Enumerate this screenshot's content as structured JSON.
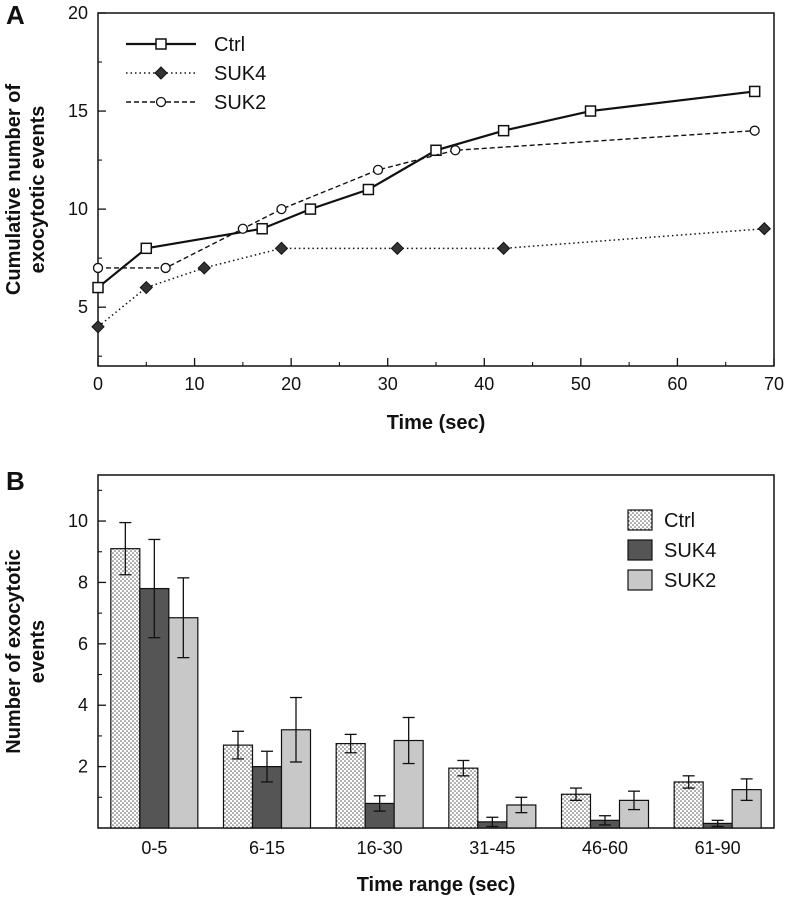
{
  "panels": {
    "a": "A",
    "b": "B"
  },
  "chart_data": [
    {
      "type": "line",
      "panel": "A",
      "xlabel": "Time (sec)",
      "ylabel": "Cumulative number of exocytotic events",
      "xlim": [
        0,
        70
      ],
      "ylim": [
        2,
        20
      ],
      "xticks": [
        0,
        10,
        20,
        30,
        40,
        50,
        60,
        70
      ],
      "yticks": [
        5,
        10,
        15,
        20
      ],
      "legend_position": "top-left",
      "series": [
        {
          "name": "Ctrl",
          "marker": "open-square",
          "line": "solid",
          "x": [
            0,
            5,
            17,
            22,
            28,
            35,
            42,
            51,
            68
          ],
          "y": [
            6,
            8,
            9,
            10,
            11,
            13,
            14,
            15,
            16
          ]
        },
        {
          "name": "SUK4",
          "marker": "filled-diamond",
          "line": "dotted",
          "x": [
            0,
            5,
            11,
            19,
            31,
            42,
            69
          ],
          "y": [
            4,
            6,
            7,
            8,
            8,
            8,
            9
          ]
        },
        {
          "name": "SUK2",
          "marker": "open-circle",
          "line": "dashed",
          "x": [
            0,
            7,
            15,
            19,
            29,
            37,
            68
          ],
          "y": [
            7,
            7,
            9,
            10,
            12,
            13,
            14
          ]
        }
      ]
    },
    {
      "type": "bar",
      "panel": "B",
      "xlabel": "Time range (sec)",
      "ylabel": "Number of exocytotic events",
      "ylim": [
        0,
        11.5
      ],
      "yticks": [
        2,
        4,
        6,
        8,
        10
      ],
      "legend_position": "top-right",
      "categories": [
        "0-5",
        "6-15",
        "16-30",
        "31-45",
        "46-60",
        "61-90"
      ],
      "series": [
        {
          "name": "Ctrl",
          "fill": "dotted",
          "values": [
            9.1,
            2.7,
            2.75,
            1.95,
            1.1,
            1.5
          ],
          "errors": [
            0.85,
            0.45,
            0.3,
            0.25,
            0.2,
            0.2
          ]
        },
        {
          "name": "SUK4",
          "fill": "dark",
          "values": [
            7.8,
            2.0,
            0.8,
            0.2,
            0.25,
            0.15
          ],
          "errors": [
            1.6,
            0.5,
            0.25,
            0.15,
            0.15,
            0.1
          ]
        },
        {
          "name": "SUK2",
          "fill": "light-gray",
          "values": [
            6.85,
            3.2,
            2.85,
            0.75,
            0.9,
            1.25
          ],
          "errors": [
            1.3,
            1.05,
            0.75,
            0.25,
            0.3,
            0.35
          ]
        }
      ],
      "colors": {
        "ctrl_dots": "#555555",
        "suk4": "#555555",
        "suk2": "#c8c8c8"
      }
    }
  ]
}
